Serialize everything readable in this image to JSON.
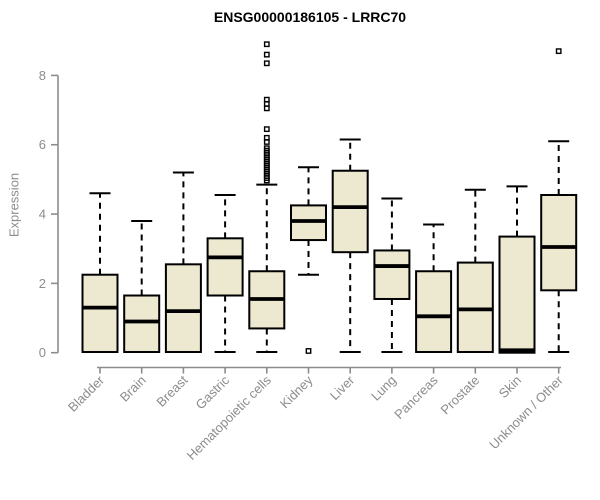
{
  "chart_data": {
    "type": "boxplot",
    "title": "ENSG00000186105 - LRRC70",
    "ylabel": "Expression",
    "xlabel": "",
    "ylim": [
      0,
      9.2
    ],
    "yticks": [
      0,
      2,
      4,
      6,
      8
    ],
    "grid": false,
    "legend": null,
    "colors": {
      "box_fill": "#EDE8D0",
      "box_stroke": "#000000",
      "median": "#000000",
      "whisker": "#000000",
      "outlier": "#000000",
      "axis": "#8c8c8c",
      "tick_label": "#8c8c8c",
      "title": "#000000"
    },
    "categories": [
      "Bladder",
      "Brain",
      "Breast",
      "Gastric",
      "Hematopoietic cells",
      "Kidney",
      "Liver",
      "Lung",
      "Pancreas",
      "Prostate",
      "Skin",
      "Unknown / Other"
    ],
    "boxes": [
      {
        "category": "Bladder",
        "whisker_low": 0.02,
        "q1": 0.02,
        "median": 1.3,
        "q3": 2.25,
        "whisker_high": 4.6,
        "outliers": []
      },
      {
        "category": "Brain",
        "whisker_low": 0.02,
        "q1": 0.02,
        "median": 0.9,
        "q3": 1.65,
        "whisker_high": 3.8,
        "outliers": []
      },
      {
        "category": "Breast",
        "whisker_low": 0.02,
        "q1": 0.02,
        "median": 1.2,
        "q3": 2.55,
        "whisker_high": 5.2,
        "outliers": []
      },
      {
        "category": "Gastric",
        "whisker_low": 0.02,
        "q1": 1.65,
        "median": 2.75,
        "q3": 3.3,
        "whisker_high": 4.55,
        "outliers": []
      },
      {
        "category": "Hematopoietic cells",
        "whisker_low": 0.02,
        "q1": 0.7,
        "median": 1.55,
        "q3": 2.35,
        "whisker_high": 4.85,
        "outliers": [
          8.9,
          8.6,
          8.35,
          7.3,
          7.18,
          7.05,
          6.45,
          6.2,
          6.08,
          5.9,
          5.83,
          5.76,
          5.7,
          5.64,
          5.58,
          5.52,
          5.46,
          5.4,
          5.34,
          5.28,
          5.22,
          5.16,
          5.1,
          5.04,
          4.97
        ]
      },
      {
        "category": "Kidney",
        "whisker_low": 2.25,
        "q1": 3.25,
        "median": 3.8,
        "q3": 4.25,
        "whisker_high": 5.35,
        "outliers": [
          0.05
        ]
      },
      {
        "category": "Liver",
        "whisker_low": 0.02,
        "q1": 2.9,
        "median": 4.2,
        "q3": 5.25,
        "whisker_high": 6.15,
        "outliers": []
      },
      {
        "category": "Lung",
        "whisker_low": 0.02,
        "q1": 1.55,
        "median": 2.5,
        "q3": 2.95,
        "whisker_high": 4.45,
        "outliers": []
      },
      {
        "category": "Pancreas",
        "whisker_low": 0.02,
        "q1": 0.02,
        "median": 1.05,
        "q3": 2.35,
        "whisker_high": 3.7,
        "outliers": []
      },
      {
        "category": "Prostate",
        "whisker_low": 0.02,
        "q1": 0.02,
        "median": 1.25,
        "q3": 2.6,
        "whisker_high": 4.7,
        "outliers": []
      },
      {
        "category": "Skin",
        "whisker_low": 0.0,
        "q1": 0.0,
        "median": 0.07,
        "q3": 3.35,
        "whisker_high": 4.8,
        "outliers": []
      },
      {
        "category": "Unknown / Other",
        "whisker_low": 0.02,
        "q1": 1.8,
        "median": 3.05,
        "q3": 4.55,
        "whisker_high": 6.1,
        "outliers": [
          8.7
        ]
      }
    ]
  }
}
